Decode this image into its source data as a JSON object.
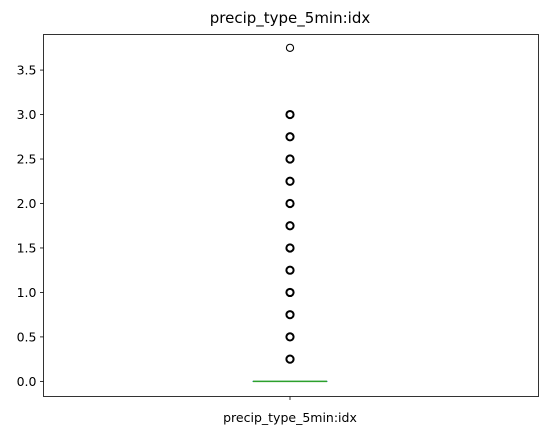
{
  "chart_data": {
    "type": "box",
    "title": "precip_type_5min:idx",
    "categories": [
      "precip_type_5min:idx"
    ],
    "xlabel": "",
    "ylabel": "",
    "ylim": [
      -0.17,
      3.9
    ],
    "yticks": [
      0.0,
      0.5,
      1.0,
      1.5,
      2.0,
      2.5,
      3.0,
      3.5
    ],
    "ytick_labels": [
      "0.0",
      "0.5",
      "1.0",
      "1.5",
      "2.0",
      "2.5",
      "3.0",
      "3.5"
    ],
    "grid": false,
    "box": {
      "q1": 0.0,
      "median": 0.0,
      "q3": 0.0,
      "whisker_low": 0.0,
      "whisker_high": 0.0
    },
    "outliers": [
      0.25,
      0.5,
      0.75,
      1.0,
      1.25,
      1.5,
      1.75,
      2.0,
      2.25,
      2.5,
      2.75,
      3.0,
      3.75
    ],
    "colors": {
      "median": "#2ca02c",
      "box": "#1f77b4",
      "outlier": "#000000"
    }
  }
}
